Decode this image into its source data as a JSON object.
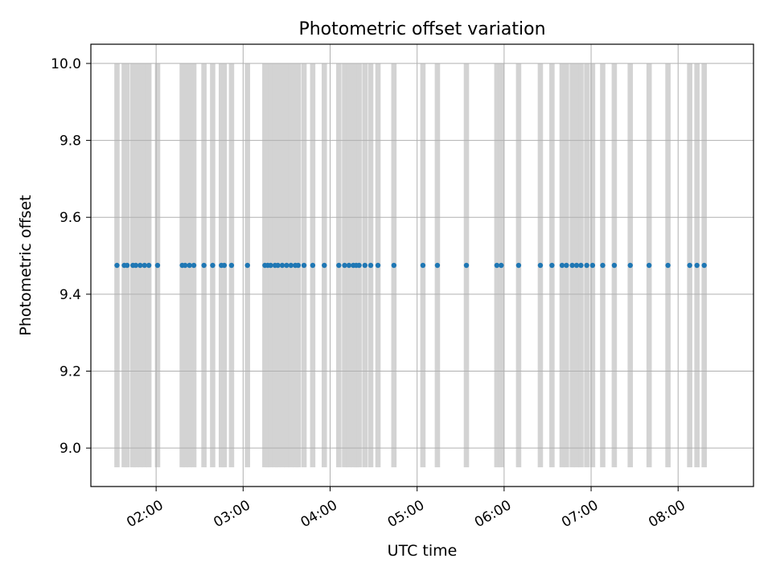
{
  "chart_data": {
    "type": "scatter",
    "title": "Photometric offset variation",
    "xlabel": "UTC time",
    "ylabel": "Photometric offset",
    "x_is_time": true,
    "xlim": [
      "01:15",
      "08:52"
    ],
    "ylim": [
      8.9,
      10.05
    ],
    "x_ticks": [
      "02:00",
      "03:00",
      "04:00",
      "05:00",
      "06:00",
      "07:00",
      "08:00"
    ],
    "y_ticks": [
      "9.0",
      "9.2",
      "9.4",
      "9.6",
      "9.8",
      "10.0"
    ],
    "grid": true,
    "marker_color": "#1f77b4",
    "band_color": "#d3d3d3",
    "band_range": [
      8.95,
      10.0
    ],
    "series": [
      {
        "x": [
          "01:33",
          "01:38",
          "01:40",
          "01:44",
          "01:46",
          "01:49",
          "01:52",
          "01:55",
          "02:01",
          "02:18",
          "02:20",
          "02:23",
          "02:26",
          "02:33",
          "02:39",
          "02:45",
          "02:47",
          "02:52",
          "03:03",
          "03:15",
          "03:17",
          "03:19",
          "03:22",
          "03:24",
          "03:27",
          "03:30",
          "03:33",
          "03:36",
          "03:38",
          "03:42",
          "03:48",
          "03:56",
          "04:06",
          "04:10",
          "04:13",
          "04:16",
          "04:18",
          "04:20",
          "04:24",
          "04:28",
          "04:33",
          "04:44",
          "05:04",
          "05:14",
          "05:34",
          "05:55",
          "05:58",
          "06:10",
          "06:25",
          "06:33",
          "06:40",
          "06:43",
          "06:47",
          "06:50",
          "06:53",
          "06:57",
          "07:01",
          "07:08",
          "07:16",
          "07:27",
          "07:40",
          "07:53",
          "08:08",
          "08:13",
          "08:18"
        ],
        "y": [
          9.475,
          9.475,
          9.475,
          9.475,
          9.475,
          9.475,
          9.475,
          9.475,
          9.475,
          9.475,
          9.475,
          9.475,
          9.475,
          9.475,
          9.475,
          9.475,
          9.475,
          9.475,
          9.475,
          9.475,
          9.475,
          9.475,
          9.475,
          9.475,
          9.475,
          9.475,
          9.475,
          9.475,
          9.475,
          9.475,
          9.475,
          9.475,
          9.475,
          9.475,
          9.475,
          9.475,
          9.475,
          9.475,
          9.475,
          9.475,
          9.475,
          9.475,
          9.475,
          9.475,
          9.475,
          9.475,
          9.475,
          9.475,
          9.475,
          9.475,
          9.475,
          9.475,
          9.475,
          9.475,
          9.475,
          9.475,
          9.475,
          9.475,
          9.475,
          9.475,
          9.475,
          9.475,
          9.475,
          9.475,
          9.475
        ]
      }
    ]
  }
}
